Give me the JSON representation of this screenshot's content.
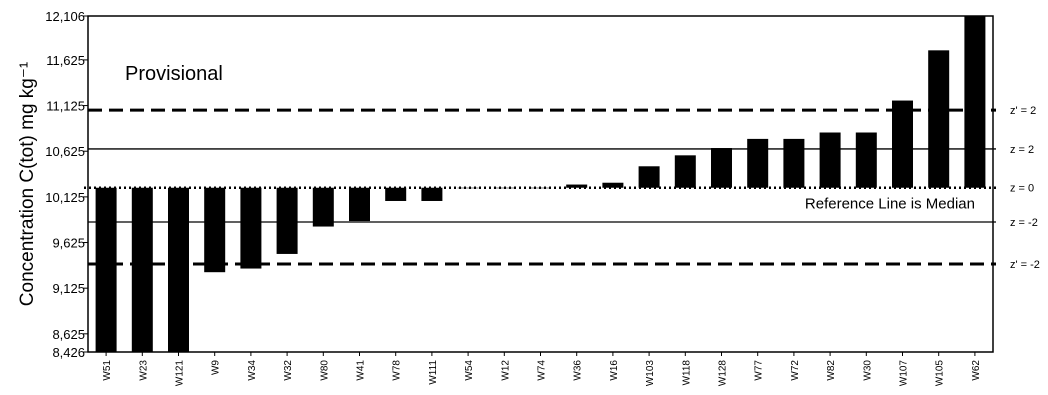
{
  "chart_data": {
    "type": "bar",
    "title": "",
    "ylabel": "Concentration C(tot) mg kg⁻¹",
    "xlabel": "",
    "ylim": [
      8426,
      12106
    ],
    "y_ticks": [
      8426,
      8625,
      9125,
      9625,
      10125,
      10625,
      11125,
      11625,
      12106
    ],
    "y_tick_labels": [
      "8,426",
      "8,625",
      "9,125",
      "9,625",
      "10,125",
      "10,625",
      "11,125",
      "11,625",
      "12,106"
    ],
    "reference_value": 10225,
    "categories": [
      "W51",
      "W23",
      "W121",
      "W9",
      "W34",
      "W32",
      "W80",
      "W41",
      "W78",
      "W111",
      "W54",
      "W12",
      "W74",
      "W36",
      "W16",
      "W103",
      "W118",
      "W128",
      "W77",
      "W72",
      "W82",
      "W30",
      "W107",
      "W105",
      "W62"
    ],
    "values": [
      8426,
      8426,
      8426,
      9300,
      9340,
      9500,
      9800,
      9860,
      10080,
      10080,
      10225,
      10225,
      10225,
      10260,
      10280,
      10460,
      10580,
      10660,
      10760,
      10760,
      10830,
      10830,
      11180,
      11730,
      12106
    ],
    "annotation": "Provisional",
    "reference_note": "Reference Line is Median",
    "lines": [
      {
        "label": "z' = 2",
        "value": 11075,
        "style": "dashed"
      },
      {
        "label": "z = 2",
        "value": 10650,
        "style": "solid"
      },
      {
        "label": "z = 0",
        "value": 10225,
        "style": "dotted"
      },
      {
        "label": "z = -2",
        "value": 9850,
        "style": "solid"
      },
      {
        "label": "z' = -2",
        "value": 9390,
        "style": "dashed"
      }
    ],
    "bar_color": "#000000",
    "grid": false
  }
}
